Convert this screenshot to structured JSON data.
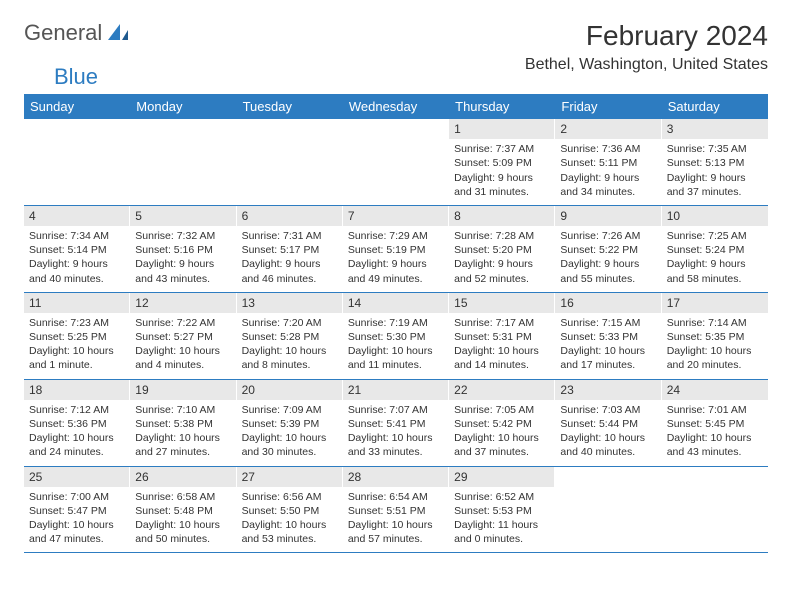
{
  "logo": {
    "text1": "General",
    "text2": "Blue"
  },
  "title": "February 2024",
  "location": "Bethel, Washington, United States",
  "colors": {
    "header_bg": "#2d7cc1",
    "header_fg": "#ffffff",
    "date_bg": "#e8e8e8",
    "border": "#2d7cc1"
  },
  "dayHeaders": [
    "Sunday",
    "Monday",
    "Tuesday",
    "Wednesday",
    "Thursday",
    "Friday",
    "Saturday"
  ],
  "weeks": [
    [
      {
        "empty": true
      },
      {
        "empty": true
      },
      {
        "empty": true
      },
      {
        "empty": true
      },
      {
        "date": "1",
        "sunrise": "Sunrise: 7:37 AM",
        "sunset": "Sunset: 5:09 PM",
        "daylight1": "Daylight: 9 hours",
        "daylight2": "and 31 minutes."
      },
      {
        "date": "2",
        "sunrise": "Sunrise: 7:36 AM",
        "sunset": "Sunset: 5:11 PM",
        "daylight1": "Daylight: 9 hours",
        "daylight2": "and 34 minutes."
      },
      {
        "date": "3",
        "sunrise": "Sunrise: 7:35 AM",
        "sunset": "Sunset: 5:13 PM",
        "daylight1": "Daylight: 9 hours",
        "daylight2": "and 37 minutes."
      }
    ],
    [
      {
        "date": "4",
        "sunrise": "Sunrise: 7:34 AM",
        "sunset": "Sunset: 5:14 PM",
        "daylight1": "Daylight: 9 hours",
        "daylight2": "and 40 minutes."
      },
      {
        "date": "5",
        "sunrise": "Sunrise: 7:32 AM",
        "sunset": "Sunset: 5:16 PM",
        "daylight1": "Daylight: 9 hours",
        "daylight2": "and 43 minutes."
      },
      {
        "date": "6",
        "sunrise": "Sunrise: 7:31 AM",
        "sunset": "Sunset: 5:17 PM",
        "daylight1": "Daylight: 9 hours",
        "daylight2": "and 46 minutes."
      },
      {
        "date": "7",
        "sunrise": "Sunrise: 7:29 AM",
        "sunset": "Sunset: 5:19 PM",
        "daylight1": "Daylight: 9 hours",
        "daylight2": "and 49 minutes."
      },
      {
        "date": "8",
        "sunrise": "Sunrise: 7:28 AM",
        "sunset": "Sunset: 5:20 PM",
        "daylight1": "Daylight: 9 hours",
        "daylight2": "and 52 minutes."
      },
      {
        "date": "9",
        "sunrise": "Sunrise: 7:26 AM",
        "sunset": "Sunset: 5:22 PM",
        "daylight1": "Daylight: 9 hours",
        "daylight2": "and 55 minutes."
      },
      {
        "date": "10",
        "sunrise": "Sunrise: 7:25 AM",
        "sunset": "Sunset: 5:24 PM",
        "daylight1": "Daylight: 9 hours",
        "daylight2": "and 58 minutes."
      }
    ],
    [
      {
        "date": "11",
        "sunrise": "Sunrise: 7:23 AM",
        "sunset": "Sunset: 5:25 PM",
        "daylight1": "Daylight: 10 hours",
        "daylight2": "and 1 minute."
      },
      {
        "date": "12",
        "sunrise": "Sunrise: 7:22 AM",
        "sunset": "Sunset: 5:27 PM",
        "daylight1": "Daylight: 10 hours",
        "daylight2": "and 4 minutes."
      },
      {
        "date": "13",
        "sunrise": "Sunrise: 7:20 AM",
        "sunset": "Sunset: 5:28 PM",
        "daylight1": "Daylight: 10 hours",
        "daylight2": "and 8 minutes."
      },
      {
        "date": "14",
        "sunrise": "Sunrise: 7:19 AM",
        "sunset": "Sunset: 5:30 PM",
        "daylight1": "Daylight: 10 hours",
        "daylight2": "and 11 minutes."
      },
      {
        "date": "15",
        "sunrise": "Sunrise: 7:17 AM",
        "sunset": "Sunset: 5:31 PM",
        "daylight1": "Daylight: 10 hours",
        "daylight2": "and 14 minutes."
      },
      {
        "date": "16",
        "sunrise": "Sunrise: 7:15 AM",
        "sunset": "Sunset: 5:33 PM",
        "daylight1": "Daylight: 10 hours",
        "daylight2": "and 17 minutes."
      },
      {
        "date": "17",
        "sunrise": "Sunrise: 7:14 AM",
        "sunset": "Sunset: 5:35 PM",
        "daylight1": "Daylight: 10 hours",
        "daylight2": "and 20 minutes."
      }
    ],
    [
      {
        "date": "18",
        "sunrise": "Sunrise: 7:12 AM",
        "sunset": "Sunset: 5:36 PM",
        "daylight1": "Daylight: 10 hours",
        "daylight2": "and 24 minutes."
      },
      {
        "date": "19",
        "sunrise": "Sunrise: 7:10 AM",
        "sunset": "Sunset: 5:38 PM",
        "daylight1": "Daylight: 10 hours",
        "daylight2": "and 27 minutes."
      },
      {
        "date": "20",
        "sunrise": "Sunrise: 7:09 AM",
        "sunset": "Sunset: 5:39 PM",
        "daylight1": "Daylight: 10 hours",
        "daylight2": "and 30 minutes."
      },
      {
        "date": "21",
        "sunrise": "Sunrise: 7:07 AM",
        "sunset": "Sunset: 5:41 PM",
        "daylight1": "Daylight: 10 hours",
        "daylight2": "and 33 minutes."
      },
      {
        "date": "22",
        "sunrise": "Sunrise: 7:05 AM",
        "sunset": "Sunset: 5:42 PM",
        "daylight1": "Daylight: 10 hours",
        "daylight2": "and 37 minutes."
      },
      {
        "date": "23",
        "sunrise": "Sunrise: 7:03 AM",
        "sunset": "Sunset: 5:44 PM",
        "daylight1": "Daylight: 10 hours",
        "daylight2": "and 40 minutes."
      },
      {
        "date": "24",
        "sunrise": "Sunrise: 7:01 AM",
        "sunset": "Sunset: 5:45 PM",
        "daylight1": "Daylight: 10 hours",
        "daylight2": "and 43 minutes."
      }
    ],
    [
      {
        "date": "25",
        "sunrise": "Sunrise: 7:00 AM",
        "sunset": "Sunset: 5:47 PM",
        "daylight1": "Daylight: 10 hours",
        "daylight2": "and 47 minutes."
      },
      {
        "date": "26",
        "sunrise": "Sunrise: 6:58 AM",
        "sunset": "Sunset: 5:48 PM",
        "daylight1": "Daylight: 10 hours",
        "daylight2": "and 50 minutes."
      },
      {
        "date": "27",
        "sunrise": "Sunrise: 6:56 AM",
        "sunset": "Sunset: 5:50 PM",
        "daylight1": "Daylight: 10 hours",
        "daylight2": "and 53 minutes."
      },
      {
        "date": "28",
        "sunrise": "Sunrise: 6:54 AM",
        "sunset": "Sunset: 5:51 PM",
        "daylight1": "Daylight: 10 hours",
        "daylight2": "and 57 minutes."
      },
      {
        "date": "29",
        "sunrise": "Sunrise: 6:52 AM",
        "sunset": "Sunset: 5:53 PM",
        "daylight1": "Daylight: 11 hours",
        "daylight2": "and 0 minutes."
      },
      {
        "empty": true
      },
      {
        "empty": true
      }
    ]
  ]
}
